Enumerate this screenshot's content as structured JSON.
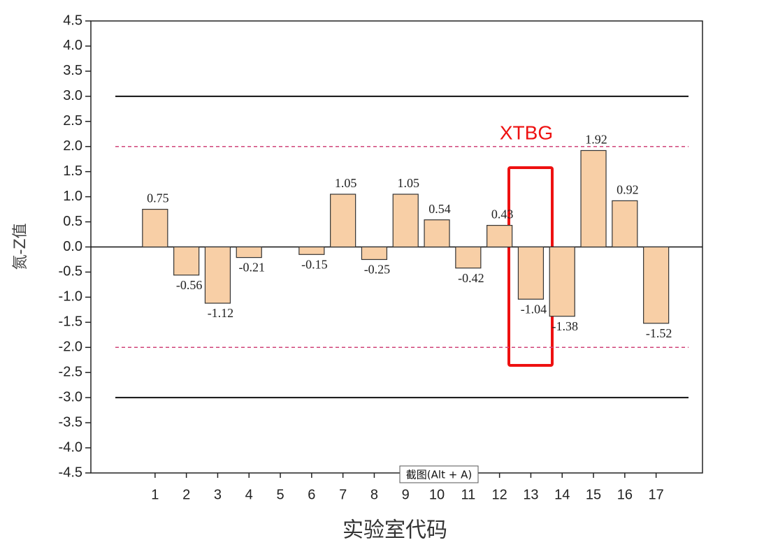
{
  "chart_data": {
    "type": "bar",
    "y_label": "氮-Z值",
    "x_label": "实验室代码",
    "categories": [
      "1",
      "2",
      "3",
      "4",
      "5",
      "6",
      "7",
      "8",
      "9",
      "10",
      "11",
      "12",
      "13",
      "14",
      "15",
      "16",
      "17"
    ],
    "values": [
      0.75,
      -0.56,
      -1.12,
      -0.21,
      null,
      -0.15,
      1.05,
      -0.25,
      1.05,
      0.54,
      -0.42,
      0.43,
      -1.04,
      -1.38,
      1.92,
      0.92,
      -1.52
    ],
    "color": "#f8cfa6",
    "ylim": [
      -4.5,
      4.5
    ],
    "yticks": [
      4.5,
      {
        "value": 4,
        "label": "4.0"
      },
      3.5,
      {
        "value": 3,
        "label": "3.0"
      },
      2.5,
      {
        "value": 2,
        "label": "2.0"
      },
      1.5,
      {
        "value": 1,
        "label": "1.0"
      },
      0.5,
      {
        "value": 0,
        "label": "0.0"
      },
      -0.5,
      {
        "value": -1,
        "label": "-1.0"
      },
      -1.5,
      {
        "value": -2,
        "label": "-2.0"
      },
      -2.5,
      {
        "value": -3,
        "label": "-3.0"
      },
      -3.5,
      {
        "value": -4,
        "label": "-4.0"
      },
      -4.5
    ],
    "reference_lines": [
      {
        "value": 3,
        "style": "solid",
        "color": "#111111"
      },
      {
        "value": 2,
        "style": "dashed",
        "color": "#d0457a"
      },
      {
        "value": -2,
        "style": "dashed",
        "color": "#d0457a"
      },
      {
        "value": -3,
        "style": "solid",
        "color": "#111111"
      }
    ],
    "annotation": "XTBG",
    "tooltip": "截图(Alt + A)"
  }
}
